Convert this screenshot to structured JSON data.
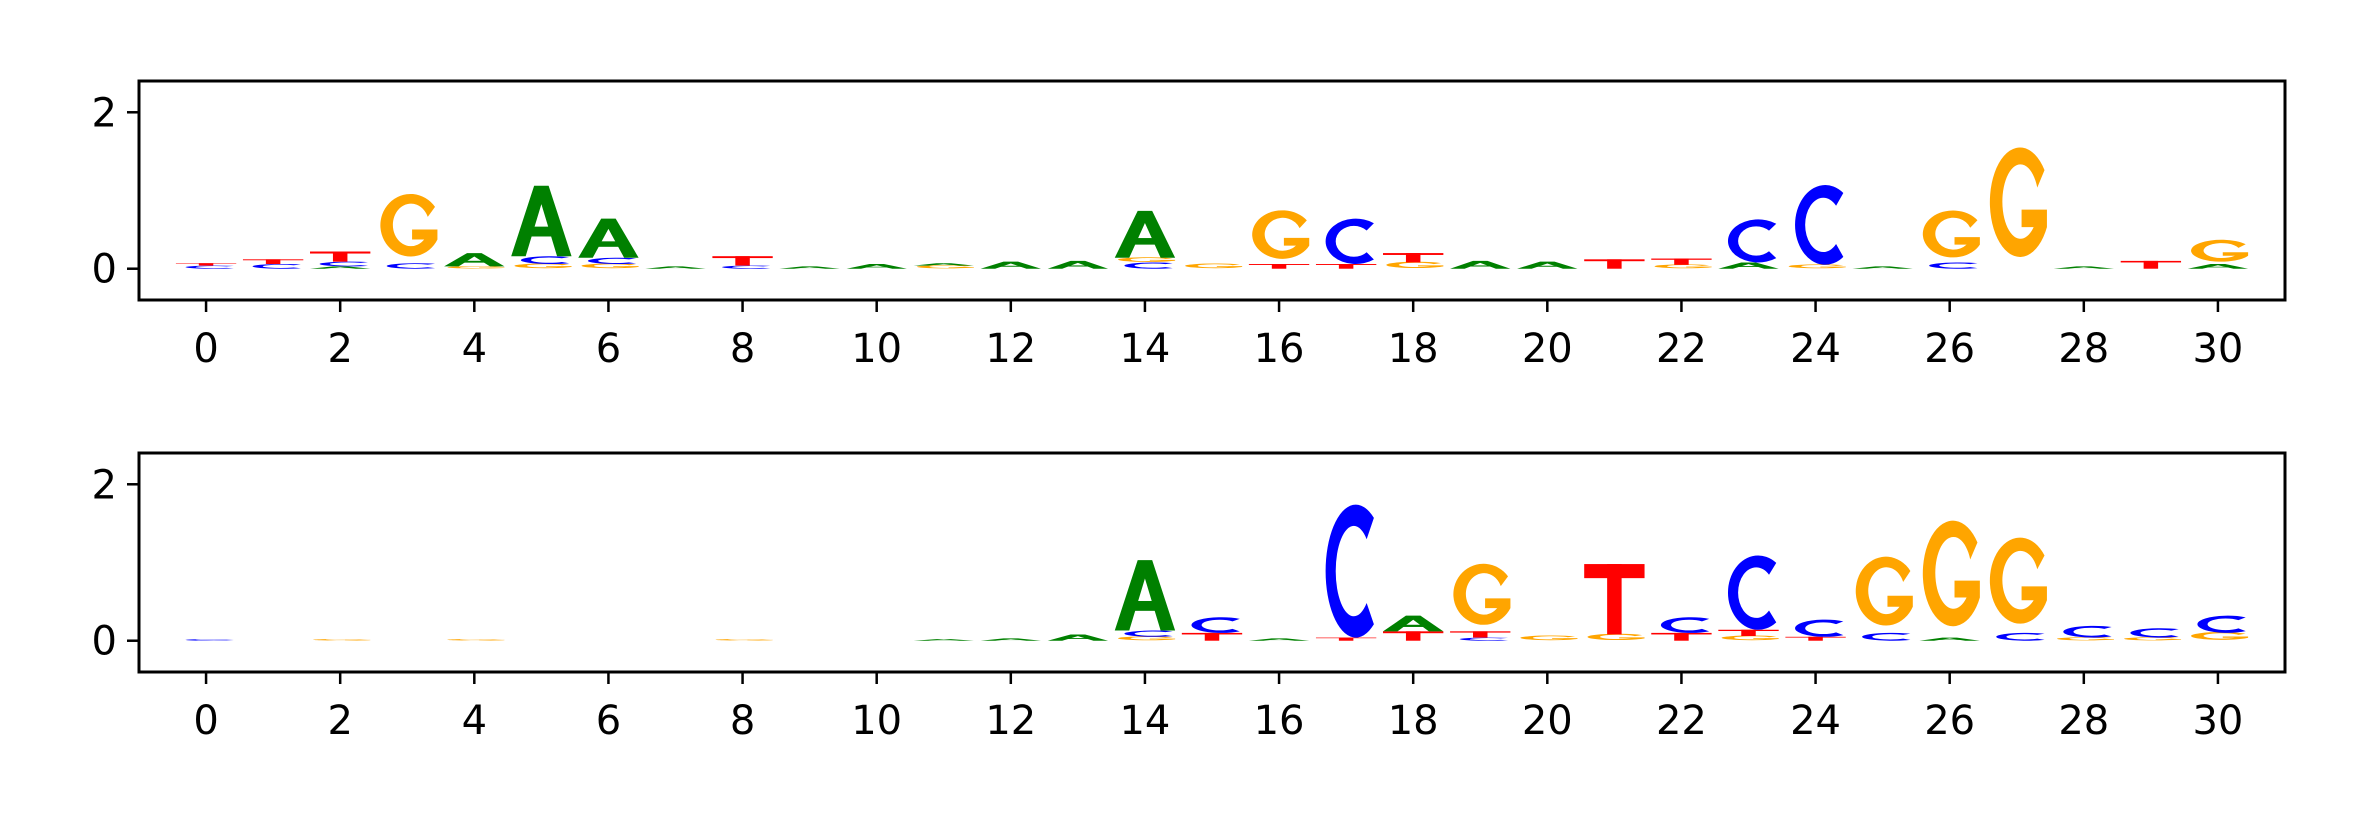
{
  "colors": {
    "A": "#008000",
    "C": "#0000ff",
    "G": "#ffa500",
    "T": "#ff0000"
  },
  "chart_data": [
    {
      "type": "sequence-logo",
      "title": "",
      "xlabel": "",
      "ylabel": "",
      "xlim": [
        -1,
        31
      ],
      "ylim": [
        -0.4,
        2.4
      ],
      "xticks": [
        0,
        2,
        4,
        6,
        8,
        10,
        12,
        14,
        16,
        18,
        20,
        22,
        24,
        26,
        28,
        30
      ],
      "yticks": [
        0,
        2
      ],
      "logo": [
        {
          "position": 0,
          "letters": [
            {
              "base": "C",
              "height": 0.04
            },
            {
              "base": "T",
              "height": 0.03
            }
          ]
        },
        {
          "position": 1,
          "letters": [
            {
              "base": "C",
              "height": 0.06
            },
            {
              "base": "T",
              "height": 0.06
            }
          ]
        },
        {
          "position": 2,
          "letters": [
            {
              "base": "A",
              "height": 0.03
            },
            {
              "base": "C",
              "height": 0.06
            },
            {
              "base": "T",
              "height": 0.13
            }
          ]
        },
        {
          "position": 3,
          "letters": [
            {
              "base": "C",
              "height": 0.07
            },
            {
              "base": "G",
              "height": 0.8
            }
          ]
        },
        {
          "position": 4,
          "letters": [
            {
              "base": "G",
              "height": 0.03
            },
            {
              "base": "A",
              "height": 0.17
            }
          ]
        },
        {
          "position": 5,
          "letters": [
            {
              "base": "G",
              "height": 0.06
            },
            {
              "base": "C",
              "height": 0.1
            },
            {
              "base": "A",
              "height": 0.9
            }
          ]
        },
        {
          "position": 6,
          "letters": [
            {
              "base": "G",
              "height": 0.06
            },
            {
              "base": "C",
              "height": 0.08
            },
            {
              "base": "A",
              "height": 0.5
            }
          ]
        },
        {
          "position": 7,
          "letters": [
            {
              "base": "A",
              "height": 0.03
            }
          ]
        },
        {
          "position": 8,
          "letters": [
            {
              "base": "C",
              "height": 0.04
            },
            {
              "base": "T",
              "height": 0.12
            }
          ]
        },
        {
          "position": 9,
          "letters": [
            {
              "base": "A",
              "height": 0.03
            }
          ]
        },
        {
          "position": 10,
          "letters": [
            {
              "base": "A",
              "height": 0.06
            }
          ]
        },
        {
          "position": 11,
          "letters": [
            {
              "base": "G",
              "height": 0.04
            },
            {
              "base": "A",
              "height": 0.03
            }
          ]
        },
        {
          "position": 12,
          "letters": [
            {
              "base": "A",
              "height": 0.09
            }
          ]
        },
        {
          "position": 13,
          "letters": [
            {
              "base": "A",
              "height": 0.1
            }
          ]
        },
        {
          "position": 14,
          "letters": [
            {
              "base": "C",
              "height": 0.08
            },
            {
              "base": "G",
              "height": 0.06
            },
            {
              "base": "A",
              "height": 0.6
            }
          ]
        },
        {
          "position": 15,
          "letters": [
            {
              "base": "G",
              "height": 0.06
            }
          ]
        },
        {
          "position": 16,
          "letters": [
            {
              "base": "T",
              "height": 0.06
            },
            {
              "base": "G",
              "height": 0.62
            }
          ]
        },
        {
          "position": 17,
          "letters": [
            {
              "base": "T",
              "height": 0.06
            },
            {
              "base": "C",
              "height": 0.58
            }
          ]
        },
        {
          "position": 18,
          "letters": [
            {
              "base": "G",
              "height": 0.08
            },
            {
              "base": "T",
              "height": 0.12
            }
          ]
        },
        {
          "position": 19,
          "letters": [
            {
              "base": "A",
              "height": 0.1
            }
          ]
        },
        {
          "position": 20,
          "letters": [
            {
              "base": "A",
              "height": 0.09
            }
          ]
        },
        {
          "position": 21,
          "letters": [
            {
              "base": "T",
              "height": 0.12
            }
          ]
        },
        {
          "position": 22,
          "letters": [
            {
              "base": "G",
              "height": 0.05
            },
            {
              "base": "T",
              "height": 0.08
            }
          ]
        },
        {
          "position": 23,
          "letters": [
            {
              "base": "A",
              "height": 0.08
            },
            {
              "base": "C",
              "height": 0.55
            }
          ]
        },
        {
          "position": 24,
          "letters": [
            {
              "base": "G",
              "height": 0.05
            },
            {
              "base": "C",
              "height": 1.02
            }
          ]
        },
        {
          "position": 25,
          "letters": [
            {
              "base": "A",
              "height": 0.03
            }
          ]
        },
        {
          "position": 26,
          "letters": [
            {
              "base": "C",
              "height": 0.08
            },
            {
              "base": "G",
              "height": 0.6
            }
          ]
        },
        {
          "position": 27,
          "letters": [
            {
              "base": "G",
              "height": 1.4
            }
          ]
        },
        {
          "position": 28,
          "letters": [
            {
              "base": "A",
              "height": 0.03
            }
          ]
        },
        {
          "position": 29,
          "letters": [
            {
              "base": "T",
              "height": 0.1
            }
          ]
        },
        {
          "position": 30,
          "letters": [
            {
              "base": "A",
              "height": 0.06
            },
            {
              "base": "G",
              "height": 0.28
            }
          ]
        }
      ]
    },
    {
      "type": "sequence-logo",
      "title": "",
      "xlabel": "",
      "ylabel": "",
      "xlim": [
        -1,
        31
      ],
      "ylim": [
        -0.4,
        2.4
      ],
      "xticks": [
        0,
        2,
        4,
        6,
        8,
        10,
        12,
        14,
        16,
        18,
        20,
        22,
        24,
        26,
        28,
        30
      ],
      "yticks": [
        0,
        2
      ],
      "logo": [
        {
          "position": 0,
          "letters": [
            {
              "base": "C",
              "height": 0.02
            }
          ]
        },
        {
          "position": 2,
          "letters": [
            {
              "base": "G",
              "height": 0.02
            }
          ]
        },
        {
          "position": 4,
          "letters": [
            {
              "base": "G",
              "height": 0.02
            }
          ]
        },
        {
          "position": 8,
          "letters": [
            {
              "base": "G",
              "height": 0.02
            }
          ]
        },
        {
          "position": 11,
          "letters": [
            {
              "base": "A",
              "height": 0.02
            }
          ]
        },
        {
          "position": 12,
          "letters": [
            {
              "base": "A",
              "height": 0.03
            }
          ]
        },
        {
          "position": 13,
          "letters": [
            {
              "base": "A",
              "height": 0.08
            }
          ]
        },
        {
          "position": 14,
          "letters": [
            {
              "base": "G",
              "height": 0.05
            },
            {
              "base": "C",
              "height": 0.08
            },
            {
              "base": "A",
              "height": 0.9
            }
          ]
        },
        {
          "position": 15,
          "letters": [
            {
              "base": "T",
              "height": 0.1
            },
            {
              "base": "C",
              "height": 0.2
            }
          ]
        },
        {
          "position": 16,
          "letters": [
            {
              "base": "A",
              "height": 0.03
            }
          ]
        },
        {
          "position": 17,
          "letters": [
            {
              "base": "T",
              "height": 0.04
            },
            {
              "base": "C",
              "height": 1.7
            }
          ]
        },
        {
          "position": 18,
          "letters": [
            {
              "base": "T",
              "height": 0.12
            },
            {
              "base": "A",
              "height": 0.2
            }
          ]
        },
        {
          "position": 19,
          "letters": [
            {
              "base": "C",
              "height": 0.04
            },
            {
              "base": "T",
              "height": 0.08
            },
            {
              "base": "G",
              "height": 0.78
            }
          ]
        },
        {
          "position": 20,
          "letters": [
            {
              "base": "G",
              "height": 0.06
            }
          ]
        },
        {
          "position": 21,
          "letters": [
            {
              "base": "G",
              "height": 0.08
            },
            {
              "base": "T",
              "height": 0.9
            }
          ]
        },
        {
          "position": 22,
          "letters": [
            {
              "base": "T",
              "height": 0.1
            },
            {
              "base": "C",
              "height": 0.2
            }
          ]
        },
        {
          "position": 23,
          "letters": [
            {
              "base": "G",
              "height": 0.06
            },
            {
              "base": "T",
              "height": 0.08
            },
            {
              "base": "C",
              "height": 0.95
            }
          ]
        },
        {
          "position": 24,
          "letters": [
            {
              "base": "T",
              "height": 0.05
            },
            {
              "base": "C",
              "height": 0.22
            }
          ]
        },
        {
          "position": 25,
          "letters": [
            {
              "base": "C",
              "height": 0.1
            },
            {
              "base": "G",
              "height": 0.88
            }
          ]
        },
        {
          "position": 26,
          "letters": [
            {
              "base": "A",
              "height": 0.04
            },
            {
              "base": "G",
              "height": 1.35
            }
          ]
        },
        {
          "position": 27,
          "letters": [
            {
              "base": "C",
              "height": 0.1
            },
            {
              "base": "G",
              "height": 1.1
            }
          ]
        },
        {
          "position": 28,
          "letters": [
            {
              "base": "G",
              "height": 0.04
            },
            {
              "base": "C",
              "height": 0.15
            }
          ]
        },
        {
          "position": 29,
          "letters": [
            {
              "base": "G",
              "height": 0.04
            },
            {
              "base": "C",
              "height": 0.12
            }
          ]
        },
        {
          "position": 30,
          "letters": [
            {
              "base": "G",
              "height": 0.1
            },
            {
              "base": "C",
              "height": 0.22
            }
          ]
        }
      ]
    }
  ]
}
